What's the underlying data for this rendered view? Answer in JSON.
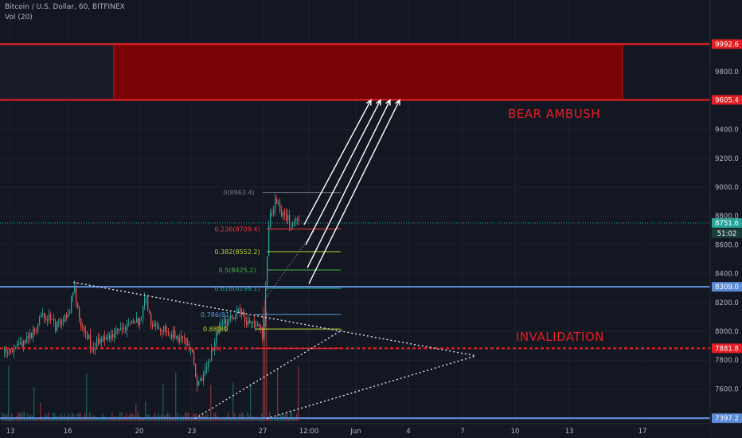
{
  "header": {
    "symbol_line": "Bitcoin / U.S. Dollar, 60, BITFINEX",
    "volume_indicator": "Vol (20)"
  },
  "chart_data": {
    "type": "candlestick",
    "title": "Bitcoin / U.S. Dollar, 60, BITFINEX",
    "ylim": [
      7330,
      10370
    ],
    "x_ticks": [
      "13",
      "16",
      "20",
      "23",
      "27",
      "12:00",
      "Jun",
      "4",
      "7",
      "10",
      "13",
      "17"
    ],
    "y_ticks": [
      7600,
      7800,
      8000,
      8200,
      8400,
      8600,
      8800,
      9000,
      9200,
      9400,
      9600,
      9800,
      10000
    ],
    "y_tick_labels": [
      "7600.0",
      "7800.0",
      "8000.0",
      "8200.0",
      "8400.0",
      "8600.0",
      "8800.0",
      "9000.0",
      "9200.0",
      "9400.0",
      "9600.0",
      "9800.0",
      "10000.0"
    ],
    "price_tags": [
      {
        "value": 9992.6,
        "label": "9992.6",
        "color": "#e31e24"
      },
      {
        "value": 9605.4,
        "label": "9605.4",
        "color": "#e31e24"
      },
      {
        "value": 8751.6,
        "label": "8751.6",
        "color": "#26a69a"
      },
      {
        "value": 8309.0,
        "label": "8309.0",
        "color": "#5b8ad8"
      },
      {
        "value": 7881.8,
        "label": "7881.8",
        "color": "#e31e24"
      },
      {
        "value": 7397.2,
        "label": "7397.2",
        "color": "#5b8ad8"
      }
    ],
    "countdown": "51:02",
    "horizontal_lines": [
      {
        "value": 9992.6,
        "color": "#e31e24",
        "style": "solid"
      },
      {
        "value": 9605.4,
        "color": "#e31e24",
        "style": "solid"
      },
      {
        "value": 8309.0,
        "color": "#5b8ad8",
        "style": "solid"
      },
      {
        "value": 7881.8,
        "color": "#e31e24",
        "style": "dashed"
      },
      {
        "value": 7397.2,
        "color": "#5b8ad8",
        "style": "solid"
      },
      {
        "value": 8751.6,
        "color": "#26a69a",
        "style": "dotted"
      }
    ],
    "zone": {
      "low": 9605.4,
      "high": 9992.6,
      "color": "#8b0000"
    },
    "fibonacci": [
      {
        "label": "0(8963.4)",
        "value": 8963.4,
        "color": "#787b86"
      },
      {
        "label": "0.236(8709.4)",
        "value": 8709.4,
        "color": "#f23645"
      },
      {
        "label": "0.382(8552.2)",
        "value": 8552.2,
        "color": "#b8d432"
      },
      {
        "label": "0.5(8425.2)",
        "value": 8425.2,
        "color": "#4caf50"
      },
      {
        "label": "0.618(8298.1)",
        "value": 8298.1,
        "color": "#26a69a"
      },
      {
        "label": "0.786(81",
        "value": 8117.1,
        "color": "#5b9bd5"
      },
      {
        "label": "0.88(80",
        "value": 8016.0,
        "color": "#b8d432"
      },
      {
        "label": "8(",
        "value": 7881.8,
        "color": "#f23645"
      }
    ],
    "annotations": [
      {
        "text": "BEAR AMBUSH",
        "color": "#e31e24"
      },
      {
        "text": "INVALIDATION",
        "color": "#e31e24"
      }
    ]
  }
}
